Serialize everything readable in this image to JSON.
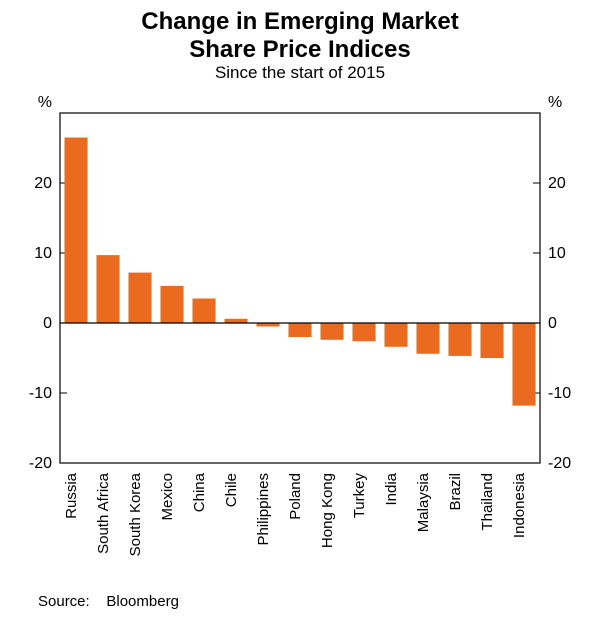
{
  "chart": {
    "type": "bar",
    "title_line1": "Change in Emerging Market",
    "title_line2": "Share Price Indices",
    "title_fontsize": 24,
    "subtitle": "Since the start of 2015",
    "subtitle_fontsize": 17,
    "y_axis_label_left": "%",
    "y_axis_label_right": "%",
    "axis_label_fontsize": 16,
    "ylim": [
      -20,
      30
    ],
    "ytick_step": 10,
    "yticks": [
      -20,
      -10,
      0,
      10,
      20
    ],
    "tick_fontsize": 16,
    "category_fontsize": 15,
    "categories": [
      "Russia",
      "South Africa",
      "South Korea",
      "Mexico",
      "China",
      "Chile",
      "Philippines",
      "Poland",
      "Hong Kong",
      "Turkey",
      "India",
      "Malaysia",
      "Brazil",
      "Thailand",
      "Indonesia"
    ],
    "values": [
      26.5,
      9.7,
      7.2,
      5.3,
      3.5,
      0.6,
      -0.5,
      -2.0,
      -2.4,
      -2.6,
      -3.4,
      -4.4,
      -4.7,
      -5.0,
      -11.8
    ],
    "bar_color": "#ea6b1f",
    "background_color": "#ffffff",
    "axis_color": "#000000",
    "bar_width_ratio": 0.72,
    "source_label": "Source:",
    "source_value": "Bloomberg",
    "source_fontsize": 15
  }
}
